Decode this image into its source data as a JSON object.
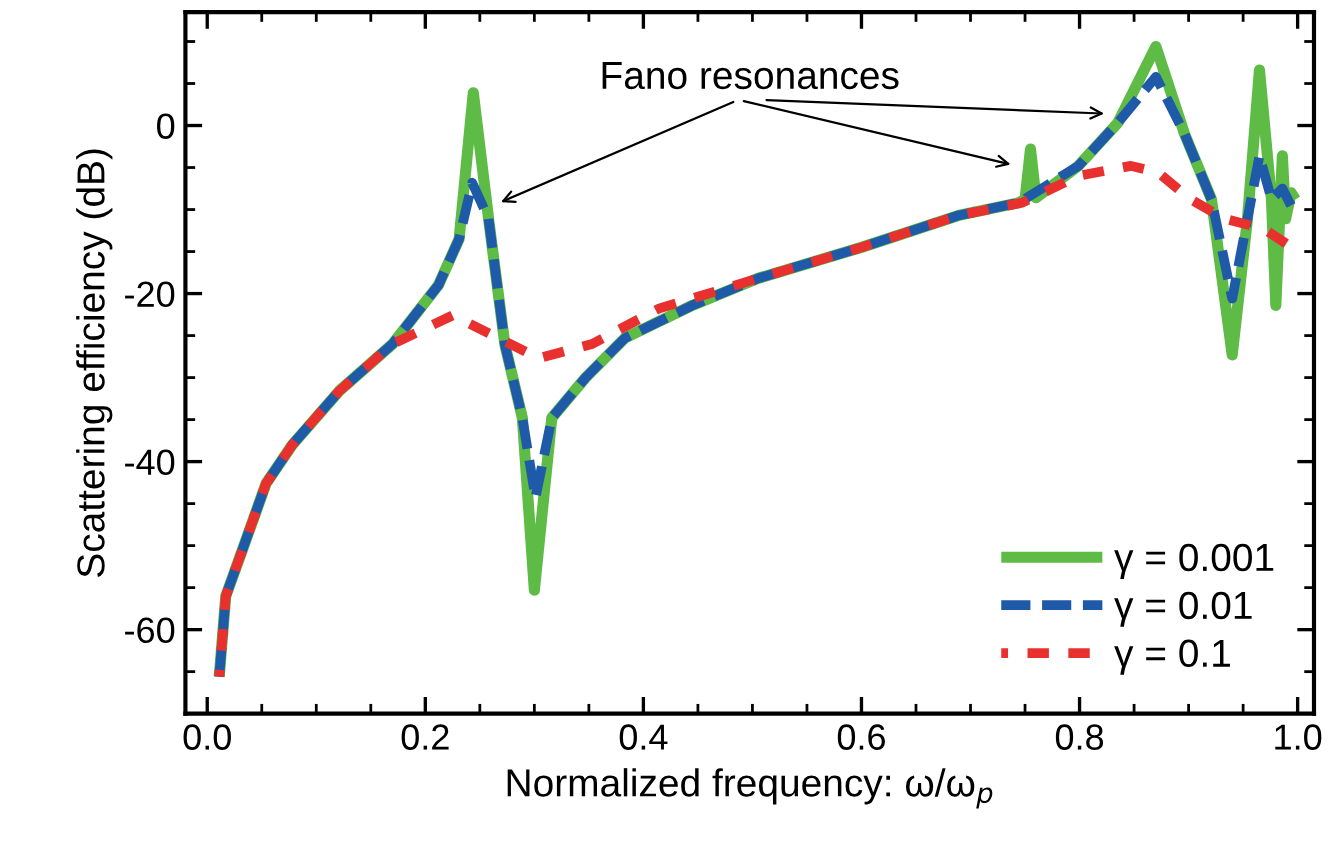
{
  "chart_data": {
    "type": "line",
    "xlabel": "Normalized frequency: ω/ω$_{p}$",
    "ylabel": "Scattering efficiency (dB)",
    "xlim": [
      -0.02,
      1.015
    ],
    "ylim": [
      -70,
      13.5
    ],
    "xticks": [
      {
        "value": 0,
        "label": "0.0"
      },
      0.2,
      0.4,
      0.6,
      0.8,
      {
        "value": 1,
        "label": "1.0"
      }
    ],
    "yticks": [
      -60,
      -40,
      -20,
      0
    ],
    "grid": false,
    "legend": "bottom right",
    "annotations": [
      "Fano resonances"
    ],
    "series": [
      {
        "name": "γ = 0.001",
        "color": "#5dbb46",
        "line_style": "solid",
        "x": [
          0.011,
          0.017,
          0.032,
          0.054,
          0.078,
          0.121,
          0.17,
          0.212,
          0.231,
          0.244,
          0.258,
          0.273,
          0.289,
          0.3,
          0.316,
          0.347,
          0.383,
          0.445,
          0.505,
          0.6,
          0.689,
          0.744,
          0.75,
          0.755,
          0.76,
          0.799,
          0.835,
          0.87,
          0.896,
          0.921,
          0.94,
          0.954,
          0.965,
          0.976,
          0.98,
          0.986,
          0.989,
          0.994,
          0.998
        ],
        "values": [
          -65.6,
          -56,
          -50.6,
          -42.6,
          -38,
          -31.6,
          -26,
          -19,
          -13.5,
          3.9,
          -11.1,
          -26.1,
          -34.8,
          -55.3,
          -34.8,
          -30,
          -25.3,
          -21.4,
          -18.2,
          -14.5,
          -10.7,
          -9.2,
          -8.8,
          -2.8,
          -8.6,
          -4.8,
          0.3,
          9.4,
          -0.9,
          -8.8,
          -27.3,
          -11.1,
          6.6,
          -8.8,
          -21.4,
          -3.6,
          -11.1,
          -8,
          -8.8
        ]
      },
      {
        "name": "γ = 0.01",
        "color": "#1f5aa8",
        "line_style": "dashed",
        "x": [
          0.011,
          0.017,
          0.032,
          0.054,
          0.078,
          0.121,
          0.17,
          0.212,
          0.231,
          0.243,
          0.258,
          0.273,
          0.289,
          0.301,
          0.316,
          0.347,
          0.383,
          0.445,
          0.505,
          0.6,
          0.689,
          0.744,
          0.799,
          0.835,
          0.87,
          0.896,
          0.921,
          0.94,
          0.954,
          0.965,
          0.976,
          0.986,
          0.997
        ],
        "values": [
          -65.6,
          -56,
          -50.6,
          -42.6,
          -38,
          -31.6,
          -26,
          -19,
          -13.5,
          -6.8,
          -11.1,
          -26.1,
          -34.8,
          -44.3,
          -34.8,
          -30,
          -25.3,
          -21.4,
          -18.2,
          -14.5,
          -10.7,
          -9.2,
          -4.8,
          0.3,
          5.8,
          -0.9,
          -8.8,
          -20.6,
          -11.1,
          -3.6,
          -8.8,
          -7.5,
          -10.3
        ]
      },
      {
        "name": "γ = 0.1",
        "color": "#e8302f",
        "line_style": "dashed",
        "x": [
          0.011,
          0.017,
          0.032,
          0.054,
          0.078,
          0.121,
          0.17,
          0.225,
          0.267,
          0.304,
          0.353,
          0.414,
          0.505,
          0.6,
          0.689,
          0.747,
          0.799,
          0.847,
          0.872,
          0.902,
          0.933,
          0.969,
          0.997
        ],
        "values": [
          -65.6,
          -56,
          -50.6,
          -42.6,
          -38,
          -31.6,
          -26,
          -22.6,
          -25.3,
          -27.7,
          -26,
          -21.8,
          -18.2,
          -14.5,
          -10.7,
          -9.2,
          -6,
          -4.8,
          -5.6,
          -8.8,
          -11.1,
          -12.3,
          -14.7
        ]
      }
    ]
  }
}
